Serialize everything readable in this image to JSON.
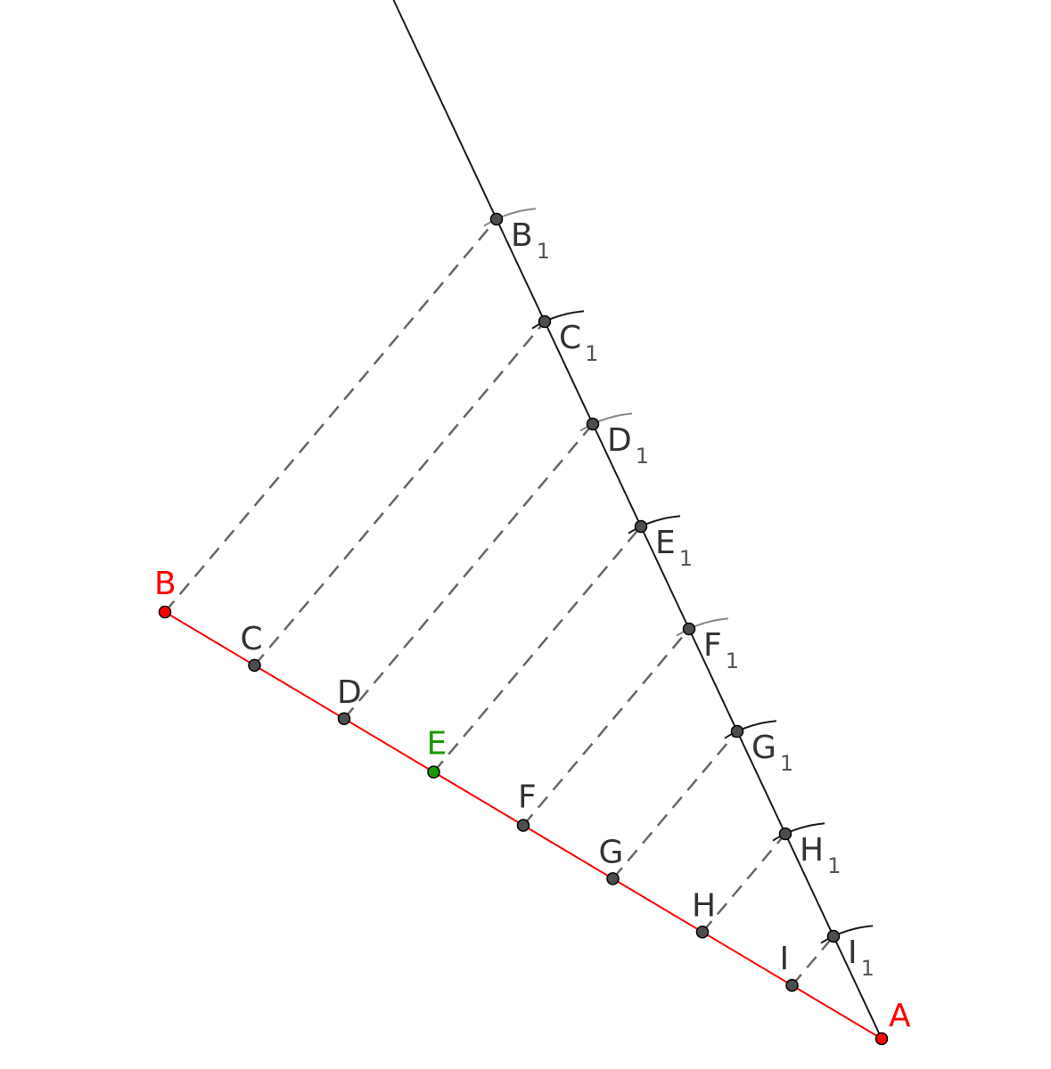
{
  "diagram": {
    "colors": {
      "segment": "#ff0000",
      "ray": "#1a1a1a",
      "construction": "#666666",
      "arc_dark": "#1a1a1a",
      "arc_light": "#888888",
      "point_fill": "#4d4d4d",
      "point_A_B": "#ff0000",
      "point_E": "#1a9900",
      "label_default": "#333333",
      "label_sub": "#555555",
      "label_A_B": "#ff0000",
      "label_E": "#1a9900"
    },
    "segment_points": [
      {
        "id": "B",
        "label": "B"
      },
      {
        "id": "C",
        "label": "C"
      },
      {
        "id": "D",
        "label": "D"
      },
      {
        "id": "E",
        "label": "E"
      },
      {
        "id": "F",
        "label": "F"
      },
      {
        "id": "G",
        "label": "G"
      },
      {
        "id": "H",
        "label": "H"
      },
      {
        "id": "I",
        "label": "I"
      },
      {
        "id": "A",
        "label": "A"
      }
    ],
    "ray_points": [
      {
        "id": "B1",
        "label": "B",
        "sub": "1"
      },
      {
        "id": "C1",
        "label": "C",
        "sub": "1"
      },
      {
        "id": "D1",
        "label": "D",
        "sub": "1"
      },
      {
        "id": "E1",
        "label": "E",
        "sub": "1"
      },
      {
        "id": "F1",
        "label": "F",
        "sub": "1"
      },
      {
        "id": "G1",
        "label": "G",
        "sub": "1"
      },
      {
        "id": "H1",
        "label": "H",
        "sub": "1"
      },
      {
        "id": "I1",
        "label": "I",
        "sub": "1"
      }
    ]
  }
}
